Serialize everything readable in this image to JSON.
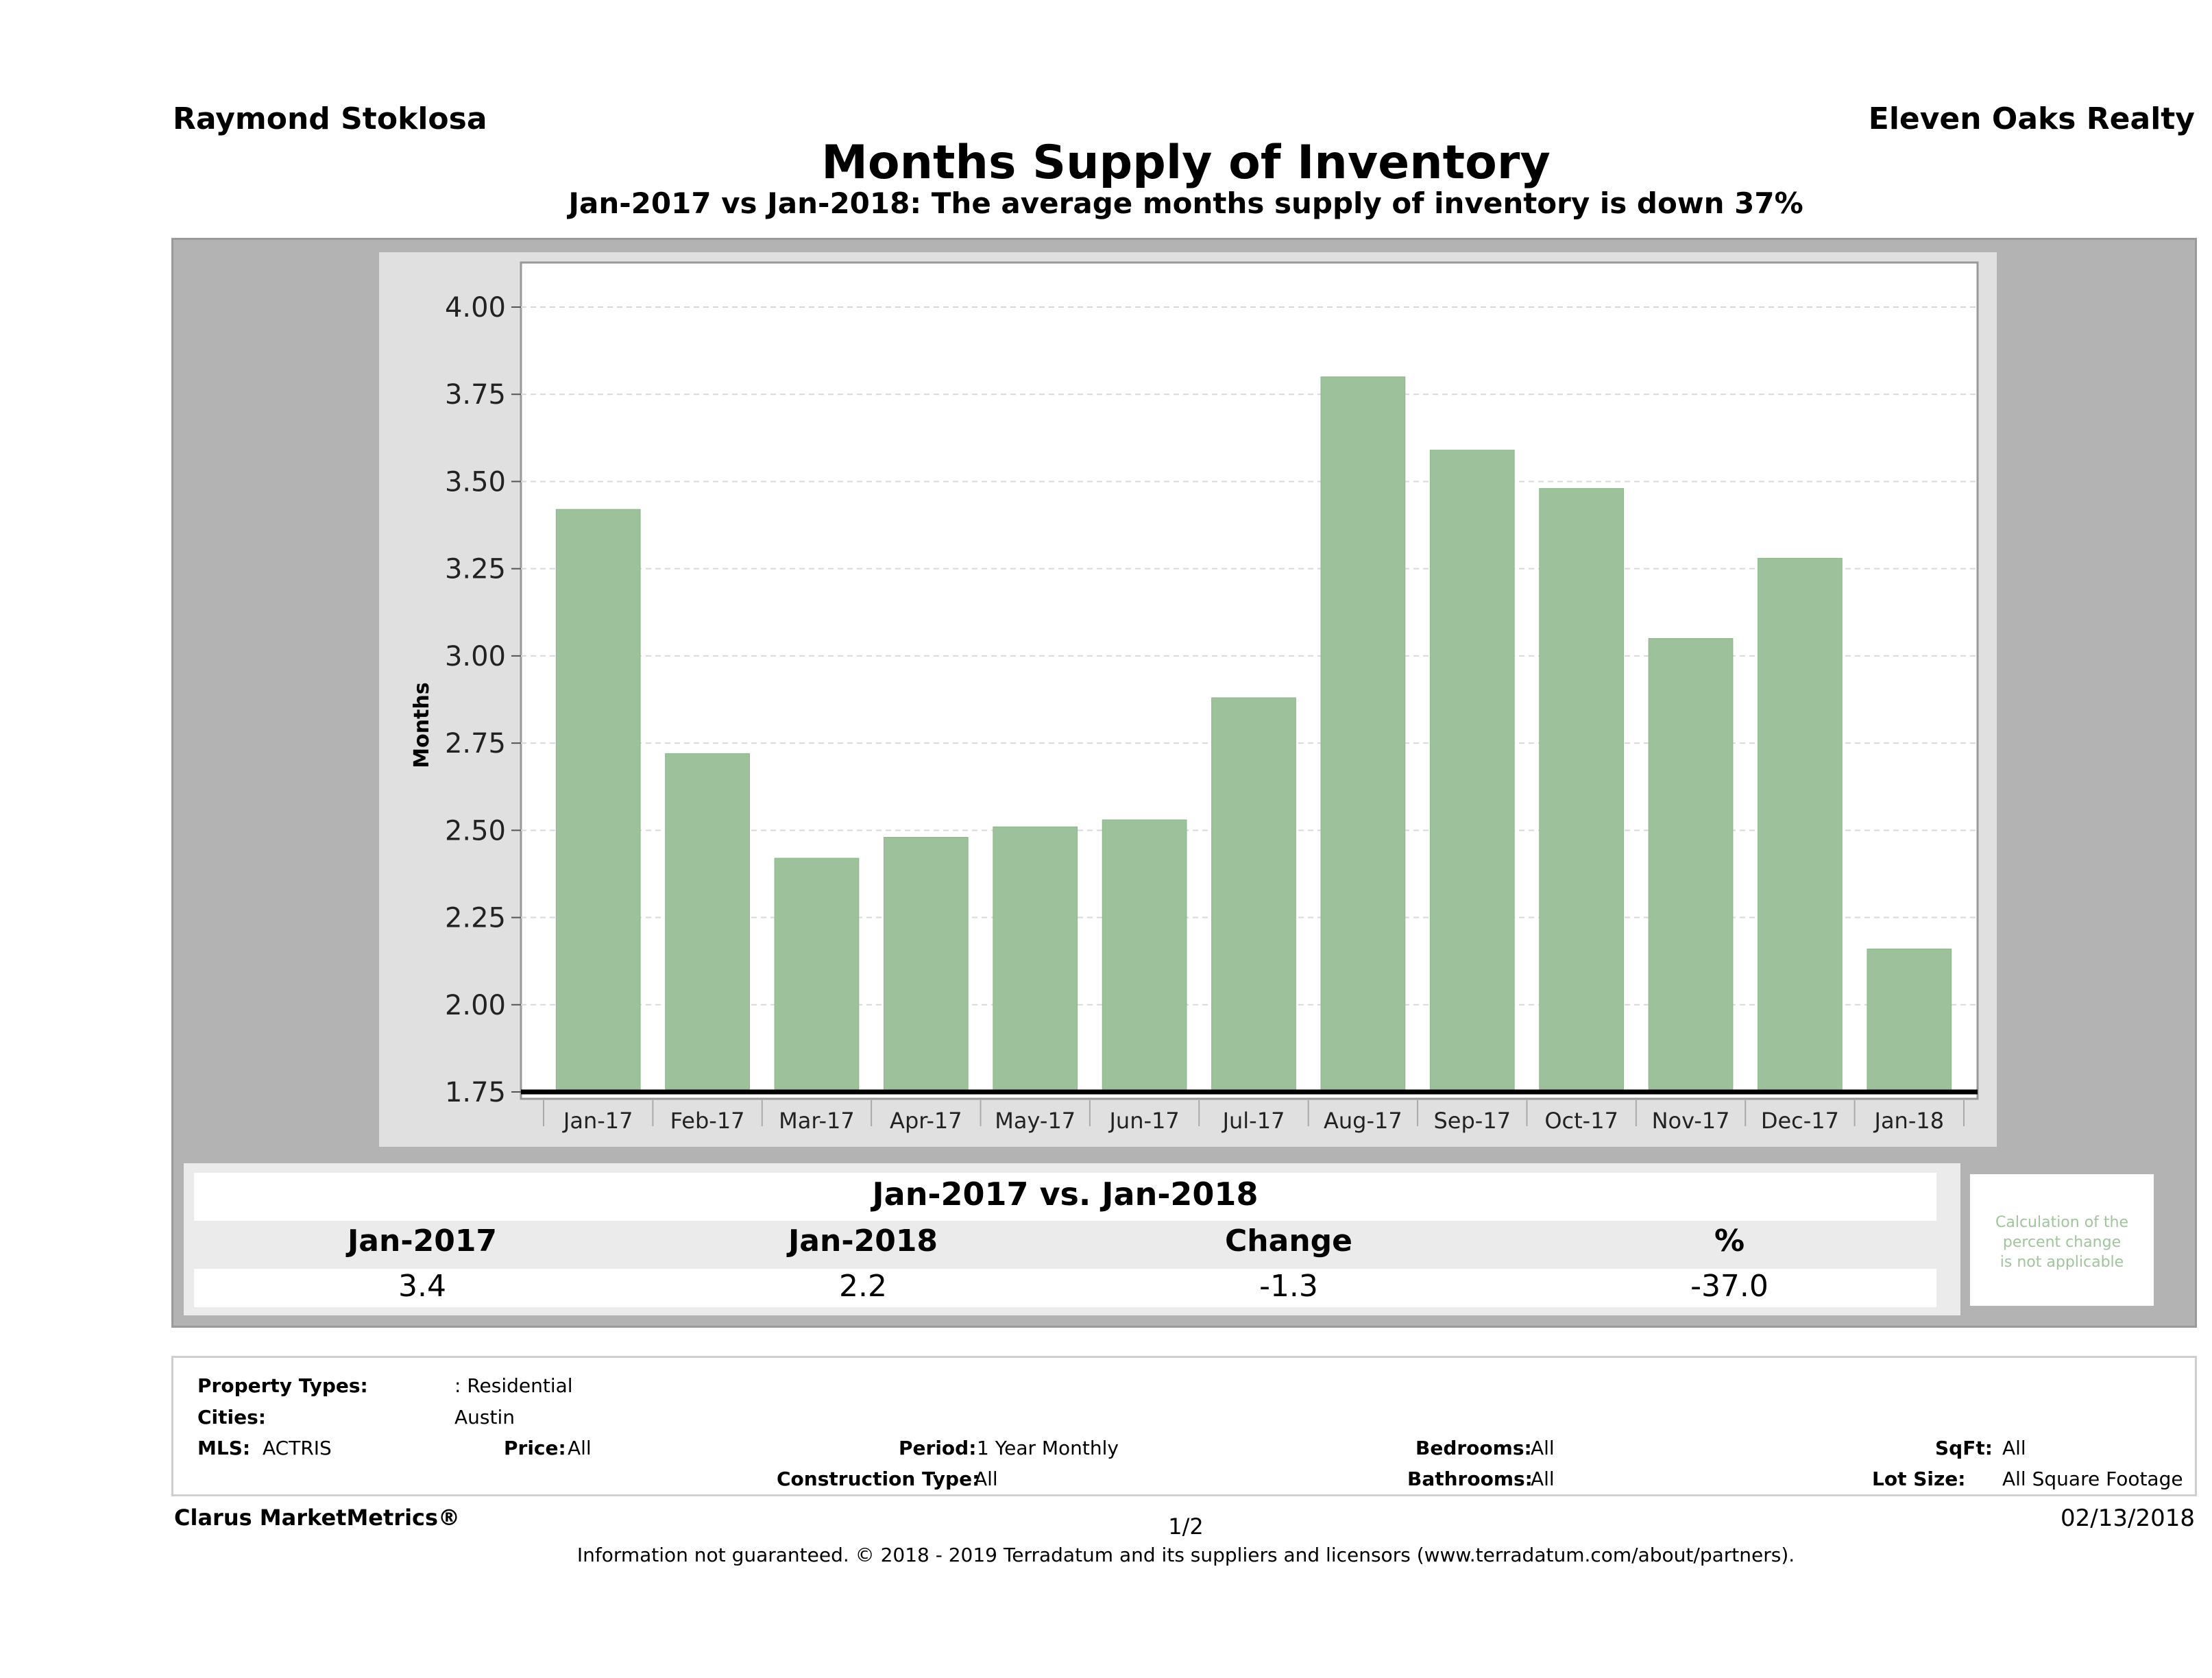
{
  "header": {
    "agent": "Raymond Stoklosa",
    "brokerage": "Eleven Oaks Realty",
    "title": "Months Supply of Inventory",
    "subtitle": "Jan-2017 vs Jan-2018: The average months supply of inventory is down 37%"
  },
  "chart_data": {
    "type": "bar",
    "categories": [
      "Jan-17",
      "Feb-17",
      "Mar-17",
      "Apr-17",
      "May-17",
      "Jun-17",
      "Jul-17",
      "Aug-17",
      "Sep-17",
      "Oct-17",
      "Nov-17",
      "Dec-17",
      "Jan-18"
    ],
    "series": [
      {
        "values": [
          3.42,
          2.72,
          2.42,
          2.48,
          2.51,
          2.53,
          2.88,
          3.8,
          3.59,
          3.48,
          3.05,
          3.28,
          2.16
        ]
      }
    ],
    "title": "",
    "xlabel": "",
    "ylabel": "Months",
    "ylim": [
      1.75,
      4.1
    ],
    "yticks": [
      "1.75",
      "2.00",
      "2.25",
      "2.50",
      "2.75",
      "3.00",
      "3.25",
      "3.50",
      "3.75",
      "4.00"
    ],
    "grid": true,
    "bar_color": "#9dc19a"
  },
  "summary": {
    "title": "Jan-2017 vs. Jan-2018",
    "headers": [
      "Jan-2017",
      "Jan-2018",
      "Change",
      "%"
    ],
    "values": [
      "3.4",
      "2.2",
      "-1.3",
      "-37.0"
    ],
    "note": [
      "Calculation of the",
      "percent change",
      "is not applicable"
    ]
  },
  "filters": {
    "property_types_label": "Property Types:",
    "property_types_value": ": Residential",
    "cities_label": "Cities:",
    "cities_value": "Austin",
    "mls_label": "MLS:",
    "mls_value": "ACTRIS",
    "price_label": "Price:",
    "price_value": "All",
    "period_label": "Period:",
    "period_value": "1 Year Monthly",
    "construction_label": "Construction Type:",
    "construction_value": "All",
    "bedrooms_label": "Bedrooms:",
    "bedrooms_value": "All",
    "bathrooms_label": "Bathrooms:",
    "bathrooms_value": "All",
    "sqft_label": "SqFt:",
    "sqft_value": "All",
    "lotsize_label": "Lot Size:",
    "lotsize_value": "All Square Footage"
  },
  "footer": {
    "brand": "Clarus MarketMetrics®",
    "page": "1/2",
    "date": "02/13/2018",
    "info": "Information not guaranteed. © 2018 - 2019 Terradatum and its suppliers and licensors (www.terradatum.com/about/partners)."
  }
}
